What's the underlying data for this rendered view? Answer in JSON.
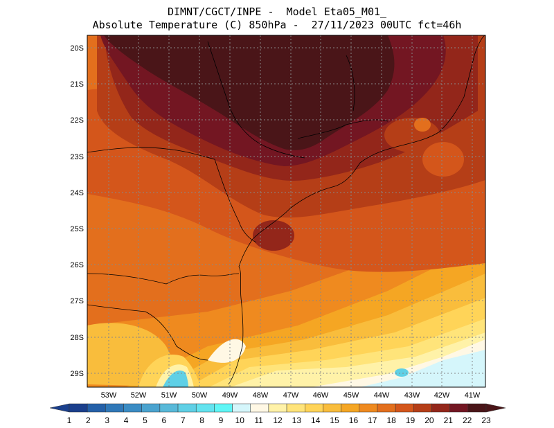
{
  "header": {
    "line1": "DIMNT/CGCT/INPE -  Model Eta05_M01_",
    "line2": "Absolute Temperature (C) 850hPa -  27/11/2023 00UTC fct=46h"
  },
  "map": {
    "lat_labels": [
      "20S",
      "21S",
      "22S",
      "23S",
      "24S",
      "25S",
      "26S",
      "27S",
      "28S",
      "29S"
    ],
    "lon_labels": [
      "53W",
      "52W",
      "51W",
      "50W",
      "49W",
      "48W",
      "47W",
      "46W",
      "45W",
      "44W",
      "43W",
      "42W",
      "41W"
    ]
  },
  "colorbar": {
    "labels": [
      "1",
      "2",
      "3",
      "4",
      "5",
      "6",
      "7",
      "8",
      "9",
      "10",
      "11",
      "12",
      "13",
      "14",
      "15",
      "16",
      "17",
      "18",
      "19",
      "20",
      "21",
      "22",
      "23"
    ],
    "colors": [
      "#1a3f8c",
      "#2460a8",
      "#2f78b8",
      "#3a8cc4",
      "#4aa3cf",
      "#58b9d9",
      "#5fd0e6",
      "#63e3ef",
      "#5ff6f6",
      "#d5f6fb",
      "#fff8e5",
      "#fff2a8",
      "#ffe47a",
      "#ffd458",
      "#f9bd3c",
      "#f5a623",
      "#ef8a1f",
      "#e36f1d",
      "#d4561b",
      "#b53e17",
      "#93261a",
      "#731622",
      "#4a1518"
    ]
  }
}
